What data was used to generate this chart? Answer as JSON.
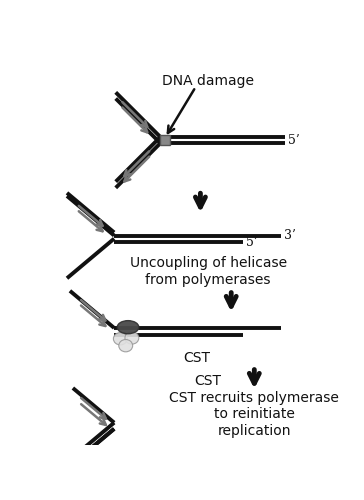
{
  "bg_color": "#ffffff",
  "line_color": "#111111",
  "arrow_gray": "#777777",
  "box_gray": "#888888",
  "label_5prime_1": "5’",
  "label_3prime": "3’",
  "label_5prime_2": "5’",
  "text1": "DNA damage",
  "text2": "Uncoupling of helicase\nfrom polymerases",
  "text3": "CST",
  "text4": "CST recruits polymerase\nto reinitiate\nreplication",
  "fontsize_labels": 10,
  "fontsize_prime": 9,
  "lw_dna": 2.8,
  "lw_strand": 1.8
}
